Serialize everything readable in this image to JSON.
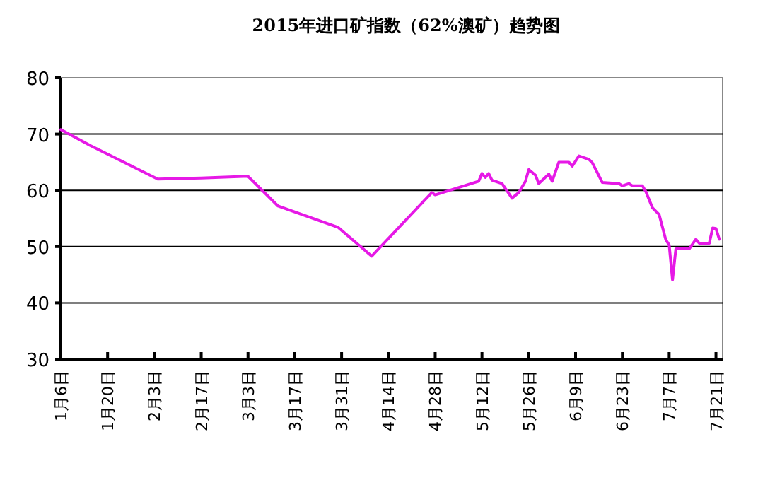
{
  "chart_data": {
    "type": "line",
    "title": "2015年进口矿指数（62%澳矿）趋势图",
    "x": [
      "2015-01-06",
      "2015-01-15",
      "2015-02-04",
      "2015-02-17",
      "2015-03-03",
      "2015-03-12",
      "2015-03-30",
      "2015-04-09",
      "2015-04-27",
      "2015-04-28",
      "2015-05-11",
      "2015-05-12",
      "2015-05-13",
      "2015-05-14",
      "2015-05-15",
      "2015-05-18",
      "2015-05-21",
      "2015-05-23",
      "2015-05-25",
      "2015-05-26",
      "2015-05-28",
      "2015-05-29",
      "2015-06-01",
      "2015-06-02",
      "2015-06-04",
      "2015-06-07",
      "2015-06-08",
      "2015-06-10",
      "2015-06-13",
      "2015-06-14",
      "2015-06-17",
      "2015-06-22",
      "2015-06-23",
      "2015-06-25",
      "2015-06-26",
      "2015-06-29",
      "2015-06-30",
      "2015-07-02",
      "2015-07-04",
      "2015-07-06",
      "2015-07-07",
      "2015-07-08",
      "2015-07-09",
      "2015-07-13",
      "2015-07-15",
      "2015-07-16",
      "2015-07-19",
      "2015-07-20",
      "2015-07-21",
      "2015-07-22"
    ],
    "series": [
      {
        "color": "#e619e6",
        "values": [
          70.8,
          67.9,
          62.0,
          62.2,
          62.5,
          57.2,
          53.4,
          48.3,
          59.6,
          59.2,
          61.6,
          63.0,
          62.3,
          63.0,
          61.8,
          61.2,
          58.6,
          59.6,
          61.6,
          63.7,
          62.7,
          61.2,
          62.9,
          61.6,
          65.0,
          65.0,
          64.3,
          66.1,
          65.5,
          64.9,
          61.4,
          61.2,
          60.8,
          61.2,
          60.8,
          60.8,
          59.8,
          56.9,
          55.7,
          51.2,
          50.3,
          44.1,
          49.6,
          49.6,
          51.3,
          50.6,
          50.6,
          53.3,
          53.2,
          51.3
        ]
      }
    ],
    "xlim": [
      "2015-01-06",
      "2015-07-23"
    ],
    "xticks": [
      {
        "value": "2015-01-06",
        "label": "1月6日"
      },
      {
        "value": "2015-01-20",
        "label": "1月20日"
      },
      {
        "value": "2015-02-03",
        "label": "2月3日"
      },
      {
        "value": "2015-02-17",
        "label": "2月17日"
      },
      {
        "value": "2015-03-03",
        "label": "3月3日"
      },
      {
        "value": "2015-03-17",
        "label": "3月17日"
      },
      {
        "value": "2015-03-31",
        "label": "3月31日"
      },
      {
        "value": "2015-04-14",
        "label": "4月14日"
      },
      {
        "value": "2015-04-28",
        "label": "4月28日"
      },
      {
        "value": "2015-05-12",
        "label": "5月12日"
      },
      {
        "value": "2015-05-26",
        "label": "5月26日"
      },
      {
        "value": "2015-06-09",
        "label": "6月9日"
      },
      {
        "value": "2015-06-23",
        "label": "6月23日"
      },
      {
        "value": "2015-07-07",
        "label": "7月7日"
      },
      {
        "value": "2015-07-21",
        "label": "7月21日"
      }
    ],
    "ylim": [
      30,
      80
    ],
    "yticks": [
      30,
      40,
      50,
      60,
      70,
      80
    ],
    "grid": "y",
    "marker": "none",
    "line_style": "solid"
  }
}
